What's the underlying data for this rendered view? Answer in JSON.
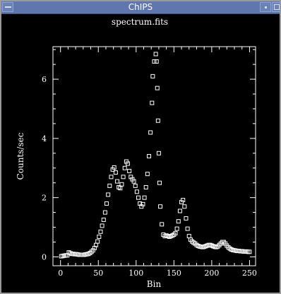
{
  "window": {
    "title": "ChIPS",
    "colors": {
      "titlebar": "#5f77ae",
      "background": "#000000",
      "foreground": "#ffffff"
    }
  },
  "icons": {
    "menu": "window-menu-icon",
    "minimize": "minimize-icon",
    "maximize": "maximize-icon"
  },
  "chart_data": {
    "type": "scatter",
    "marker": "open-square",
    "title": "spectrum.fits",
    "xlabel": "Bin",
    "ylabel": "Counts/sec",
    "xlim": [
      -10,
      258
    ],
    "ylim": [
      -0.3,
      7.1
    ],
    "xticks": [
      0,
      50,
      100,
      150,
      200,
      250
    ],
    "yticks": [
      0,
      2,
      4,
      6
    ],
    "grid": false,
    "series": [
      {
        "x": [
          1,
          3,
          5,
          7,
          9,
          11,
          13,
          15,
          17,
          19,
          21,
          23,
          25,
          27,
          29,
          31,
          33,
          35,
          37,
          39,
          41,
          43,
          45,
          47,
          49,
          51,
          53,
          55,
          57,
          59,
          61,
          63,
          65,
          67,
          69,
          71,
          73,
          75,
          77,
          79,
          81,
          83,
          85,
          87,
          89,
          91,
          93,
          95,
          97,
          99,
          101,
          103,
          105,
          107,
          109,
          111,
          113,
          115,
          117,
          119,
          121,
          122,
          124,
          126,
          127,
          128,
          129,
          130,
          131,
          132,
          134,
          136,
          138,
          140,
          142,
          144,
          146,
          148,
          150,
          152,
          154,
          156,
          158,
          160,
          162,
          164,
          166,
          168,
          170,
          172,
          174,
          176,
          178,
          180,
          182,
          184,
          186,
          188,
          190,
          192,
          194,
          196,
          198,
          200,
          202,
          204,
          206,
          208,
          210,
          212,
          214,
          216,
          218,
          220,
          222,
          224,
          226,
          228,
          230,
          232,
          234,
          236,
          238,
          240,
          242,
          244,
          246,
          248,
          250
        ],
        "y": [
          0.02,
          0.03,
          0.04,
          0.05,
          0.05,
          0.15,
          0.12,
          0.1,
          0.1,
          0.09,
          0.09,
          0.08,
          0.07,
          0.07,
          0.07,
          0.07,
          0.08,
          0.09,
          0.1,
          0.13,
          0.17,
          0.22,
          0.3,
          0.4,
          0.52,
          0.68,
          0.85,
          1.05,
          1.25,
          1.5,
          1.8,
          2.1,
          2.4,
          2.7,
          2.95,
          3.02,
          2.85,
          2.55,
          2.35,
          2.32,
          2.45,
          2.7,
          3.0,
          3.22,
          3.15,
          2.9,
          2.7,
          2.62,
          2.55,
          2.4,
          2.2,
          2.0,
          1.8,
          1.7,
          1.78,
          2.0,
          2.35,
          2.8,
          3.4,
          4.2,
          5.2,
          6.1,
          6.6,
          6.85,
          6.6,
          5.7,
          4.6,
          3.5,
          2.5,
          1.7,
          1.1,
          0.75,
          0.7,
          0.72,
          0.7,
          0.68,
          0.7,
          0.72,
          0.75,
          0.8,
          0.95,
          1.2,
          1.55,
          1.85,
          1.92,
          1.7,
          1.3,
          0.95,
          0.7,
          0.58,
          0.52,
          0.48,
          0.45,
          0.4,
          0.37,
          0.35,
          0.34,
          0.33,
          0.34,
          0.36,
          0.38,
          0.4,
          0.4,
          0.38,
          0.36,
          0.34,
          0.33,
          0.35,
          0.4,
          0.45,
          0.5,
          0.5,
          0.45,
          0.38,
          0.32,
          0.28,
          0.25,
          0.23,
          0.22,
          0.21,
          0.2,
          0.2,
          0.19,
          0.19,
          0.18,
          0.18,
          0.18,
          0.17,
          0.17
        ]
      }
    ]
  }
}
